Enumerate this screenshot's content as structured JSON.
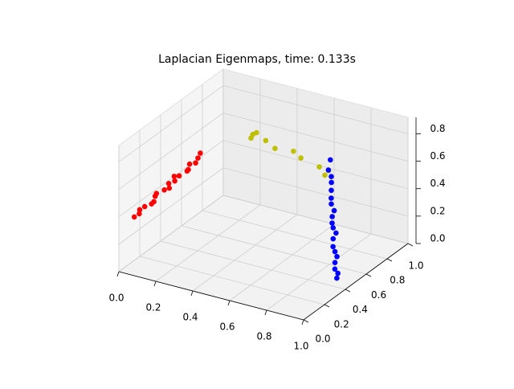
{
  "chart_data": {
    "type": "scatter3d",
    "title": "Laplacian Eigenmaps, time: 0.133s",
    "xlim": [
      0,
      1
    ],
    "ylim": [
      0,
      1
    ],
    "zlim": [
      0,
      0.92
    ],
    "xticks": [
      {
        "value": 0,
        "label": "0.0"
      },
      {
        "value": 0.2,
        "label": "0.2"
      },
      {
        "value": 0.4,
        "label": "0.4"
      },
      {
        "value": 0.6,
        "label": "0.6"
      },
      {
        "value": 0.8,
        "label": "0.8"
      },
      {
        "value": 1,
        "label": "1.0"
      }
    ],
    "yticks": [
      {
        "value": 0,
        "label": "0.0"
      },
      {
        "value": 0.2,
        "label": "0.2"
      },
      {
        "value": 0.4,
        "label": "0.4"
      },
      {
        "value": 0.6,
        "label": "0.6"
      },
      {
        "value": 0.8,
        "label": "0.8"
      },
      {
        "value": 1,
        "label": "1.0"
      }
    ],
    "zticks": [
      {
        "value": 0,
        "label": "0.0"
      },
      {
        "value": 0.2,
        "label": "0.2"
      },
      {
        "value": 0.4,
        "label": "0.4"
      },
      {
        "value": 0.6,
        "label": "0.6"
      },
      {
        "value": 0.8,
        "label": "0.8"
      }
    ],
    "grid": true,
    "series": [
      {
        "color": "#ff0000",
        "x": [
          0.01,
          0.02,
          0,
          0.01,
          0.03,
          0.02,
          0.01,
          0,
          0.02,
          0.03,
          0.01,
          0.02,
          0,
          0.01,
          0.03,
          0.02,
          0.01,
          0.02,
          0.01,
          0
        ],
        "y": [
          0.13,
          0.16,
          0.2,
          0.23,
          0.26,
          0.3,
          0.33,
          0.36,
          0.4,
          0.43,
          0.46,
          0.5,
          0.53,
          0.56,
          0.6,
          0.63,
          0.66,
          0.7,
          0.74,
          0.78
        ],
        "z": [
          0.33,
          0.34,
          0.34,
          0.35,
          0.36,
          0.35,
          0.37,
          0.37,
          0.38,
          0.38,
          0.39,
          0.39,
          0.4,
          0.39,
          0.41,
          0.4,
          0.42,
          0.41,
          0.42,
          0.43
        ]
      },
      {
        "color": "#bfbf00",
        "x": [
          0.16,
          0.15,
          0.18,
          0.23,
          0.28,
          0.38,
          0.42,
          0.52,
          0.55,
          0.57
        ],
        "y": [
          1,
          1,
          1,
          1,
          1,
          1,
          1,
          1,
          1,
          1
        ],
        "z": [
          0.5,
          0.47,
          0.52,
          0.48,
          0.44,
          0.455,
          0.42,
          0.39,
          0.34,
          0.38
        ]
      },
      {
        "color": "#0000ff",
        "x": [
          0.92,
          0.92,
          0.915,
          0.91,
          0.915,
          0.91,
          0.905,
          0.9,
          0.91,
          0.9,
          0.9,
          0.895,
          0.9,
          0.89,
          0.895,
          0.89,
          0.885,
          0.89,
          0.88,
          0.885
        ],
        "y": [
          0.46,
          0.47,
          0.45,
          0.46,
          0.47,
          0.46,
          0.45,
          0.46,
          0.47,
          0.46,
          0.45,
          0.46,
          0.47,
          0.46,
          0.45,
          0.46,
          0.47,
          0.46,
          0.45,
          0.46
        ],
        "z": [
          0.02,
          0.05,
          0.09,
          0.13,
          0.17,
          0.21,
          0.25,
          0.3,
          0.34,
          0.38,
          0.42,
          0.46,
          0.5,
          0.55,
          0.6,
          0.65,
          0.7,
          0.75,
          0.8,
          0.87
        ]
      }
    ]
  }
}
